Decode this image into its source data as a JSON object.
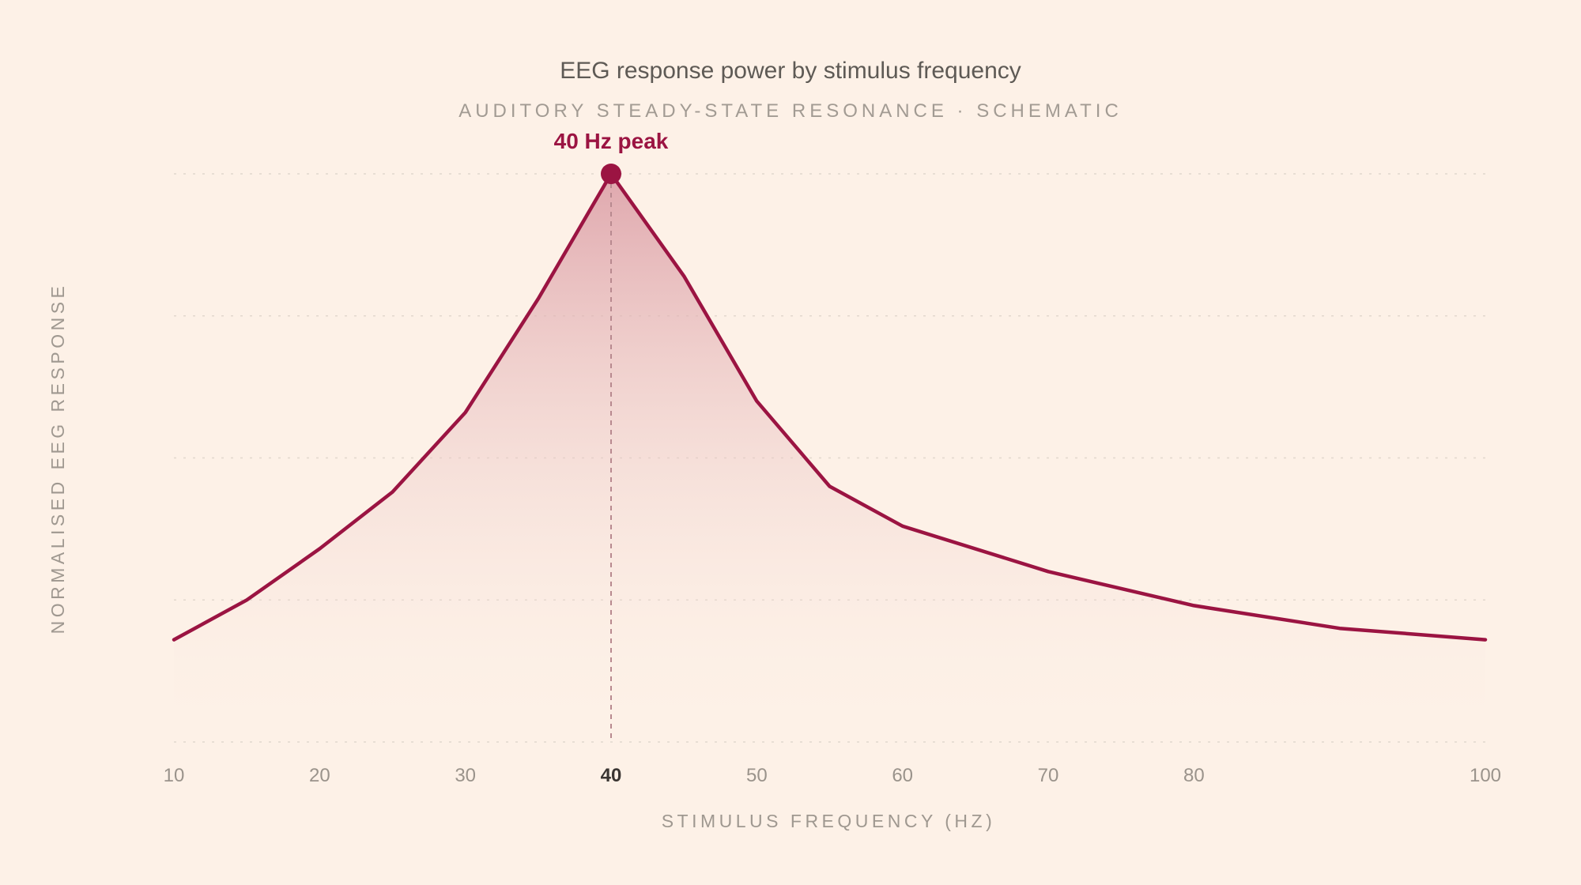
{
  "chart_data": {
    "type": "area",
    "title": "EEG response power by stimulus frequency",
    "subtitle": "AUDITORY STEADY-STATE RESONANCE · SCHEMATIC",
    "xlabel": "STIMULUS FREQUENCY (HZ)",
    "ylabel": "NORMALISED EEG RESPONSE",
    "x_ticks": [
      10,
      20,
      30,
      40,
      50,
      60,
      70,
      80,
      100
    ],
    "highlight_tick": 40,
    "xlim": [
      10,
      100
    ],
    "ylim": [
      0,
      1
    ],
    "y_gridlines": [
      0,
      0.25,
      0.5,
      0.75,
      1.0
    ],
    "grid": true,
    "series": [
      {
        "x": [
          10,
          15,
          20,
          25,
          30,
          35,
          40,
          45,
          50,
          55,
          60,
          70,
          80,
          90,
          100
        ],
        "y": [
          0.18,
          0.25,
          0.34,
          0.44,
          0.58,
          0.78,
          1.0,
          0.82,
          0.6,
          0.45,
          0.38,
          0.3,
          0.24,
          0.2,
          0.18
        ]
      }
    ],
    "annotation": {
      "label": "40 Hz peak",
      "x": 40,
      "y": 1.0
    },
    "colors": {
      "line": "#9b1442",
      "fill_top": "#d8959f",
      "fill_bottom": "#fdf1e7",
      "background": "#fdf1e7"
    }
  }
}
